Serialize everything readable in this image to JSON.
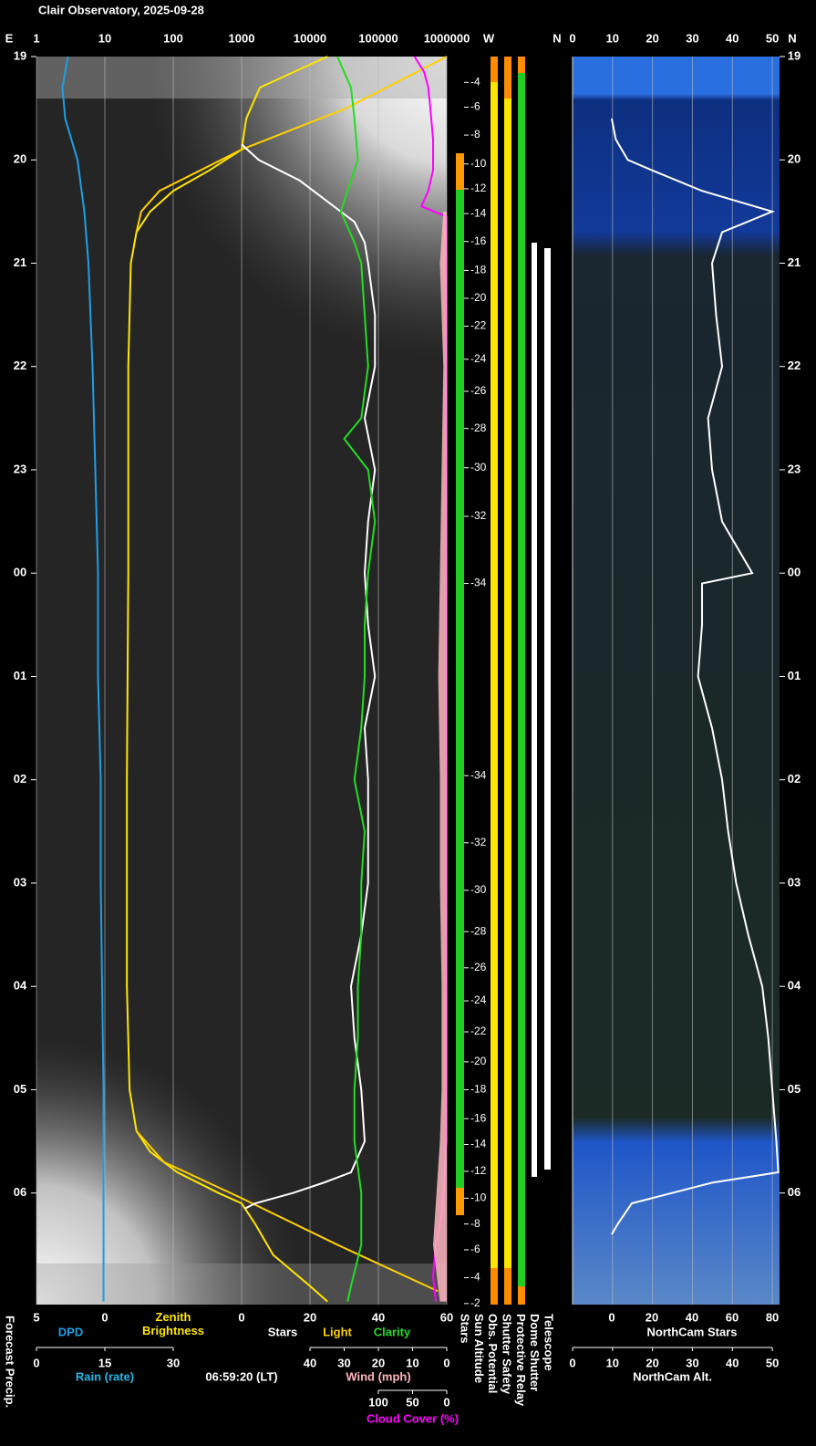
{
  "title": "Clair Observatory, 2025-09-28",
  "side_label": "Forecast Precip.",
  "footer_time": "06:59:20 (LT)",
  "mid_label": "N",
  "column_labels": [
    "Stars",
    "Sun Altitude",
    "Obs. Potential",
    "Shutter Safety",
    "Protective Relay",
    "Dome Shutter",
    "Telescope"
  ],
  "time_axis": {
    "ylim": [
      19,
      31.08
    ],
    "yticks": [
      19,
      20,
      21,
      22,
      23,
      {
        "value": 24,
        "label": "00"
      },
      {
        "value": 25,
        "label": "01"
      },
      {
        "value": 26,
        "label": "02"
      },
      {
        "value": 27,
        "label": "03"
      },
      {
        "value": 28,
        "label": "04"
      },
      {
        "value": 29,
        "label": "05"
      },
      {
        "value": 30,
        "label": "06"
      }
    ]
  },
  "left_panel": {
    "east_label": "E",
    "west_label": "W",
    "grid": true,
    "axes": {
      "log": {
        "lim": [
          1,
          1000000
        ],
        "ticks": [
          1,
          10,
          100,
          1000,
          10000,
          100000,
          1000000
        ],
        "log": true
      },
      "dpd": {
        "label": "DPD",
        "color": "#1e9fe6",
        "lim": [
          5,
          -25
        ],
        "ticks": [
          5,
          0
        ]
      },
      "slc": {
        "lim": [
          -60,
          60
        ],
        "ticks": [
          0,
          20,
          40,
          60
        ]
      },
      "rain": {
        "label": "Rain (rate)",
        "color": "#22b5e8",
        "lim": [
          0,
          90
        ],
        "ticks": [
          0,
          15,
          30
        ]
      },
      "wind": {
        "label": "Wind (mph)",
        "color": "#ffb6c1",
        "lim": [
          120,
          0
        ],
        "ticks": [
          40,
          30,
          20,
          10,
          0
        ]
      },
      "cloud": {
        "label": "Cloud Cover (%)",
        "color": "#ff00ff",
        "lim": [
          600,
          0
        ],
        "ticks": [
          100,
          50,
          0
        ]
      }
    },
    "series": [
      {
        "name": "Zenith Brightness",
        "axis": "log",
        "color": "#ffe600",
        "t": [
          19.0,
          19.3,
          19.6,
          19.9,
          20.1,
          20.3,
          20.5,
          20.7,
          21.0,
          22.0,
          24.0,
          26.0,
          28.0,
          29.0,
          29.4,
          29.6,
          29.8,
          30.0,
          30.1,
          30.3,
          30.6,
          30.9,
          31.05
        ],
        "values": [
          18000,
          1850,
          1170,
          1000,
          340,
          100,
          46,
          29,
          24,
          22,
          22,
          21,
          21,
          23,
          29,
          46,
          115,
          460,
          1000,
          1580,
          2900,
          10000,
          18000
        ]
      },
      {
        "name": "Light",
        "axis": "log",
        "color": "#ffd000",
        "t": [
          19.0,
          19.5,
          19.9,
          20.3,
          20.5,
          20.7,
          25.0,
          29.4,
          29.7,
          30.05,
          30.5,
          30.95
        ],
        "values": [
          1000000,
          34000,
          1000,
          63,
          34,
          29,
          null,
          29,
          73,
          1000,
          25000,
          740000
        ]
      },
      {
        "name": "Stars",
        "axis": "slc",
        "color": "#ffffff",
        "t": [
          19.85,
          20.0,
          20.2,
          20.4,
          20.6,
          20.8,
          21.0,
          21.5,
          22.0,
          22.5,
          23.0,
          23.5,
          24.0,
          24.5,
          25.0,
          25.5,
          26.0,
          26.5,
          27.0,
          27.5,
          28.0,
          28.5,
          29.0,
          29.5,
          29.8,
          29.9,
          30.0,
          30.1,
          30.15
        ],
        "values": [
          0,
          5,
          17,
          25,
          33,
          36,
          37,
          39,
          39,
          36,
          39,
          37,
          36,
          37,
          39,
          36,
          37,
          37,
          37,
          35,
          32,
          33,
          35,
          36,
          32,
          24,
          15,
          4,
          1
        ]
      },
      {
        "name": "Clarity",
        "axis": "slc",
        "color": "#22dd22",
        "t": [
          19.0,
          19.3,
          19.6,
          20.0,
          20.3,
          20.5,
          20.8,
          21.0,
          21.5,
          22.0,
          22.5,
          22.7,
          23.0,
          23.5,
          24.0,
          24.5,
          25.0,
          25.5,
          26.0,
          26.5,
          27.0,
          27.5,
          28.0,
          28.5,
          29.0,
          29.5,
          30.0,
          30.5,
          30.9,
          31.05
        ],
        "values": [
          28,
          32,
          33,
          34,
          31,
          29,
          33,
          35,
          36,
          37,
          35,
          30,
          37,
          39,
          37,
          36,
          36,
          35,
          33,
          36,
          35,
          35,
          34,
          34,
          33,
          33,
          35,
          35,
          32,
          31
        ]
      },
      {
        "axis": "dpd",
        "color": "#1e9fe6",
        "t": [
          19.0,
          19.3,
          19.6,
          20.0,
          20.5,
          21.0,
          22.0,
          23.0,
          24.0,
          25.0,
          26.0,
          27.0,
          28.0,
          29.0,
          30.0,
          31.05
        ],
        "values": [
          2.7,
          3.1,
          2.9,
          2,
          1.5,
          1.2,
          0.9,
          0.7,
          0.5,
          0.5,
          0.3,
          0.3,
          0.2,
          0.1,
          0.1,
          0.1
        ]
      },
      {
        "axis": "cloud",
        "color": "#ff00ff",
        "t": [
          19.0,
          19.15,
          19.3,
          19.5,
          19.8,
          20.1,
          20.3,
          20.45,
          20.55,
          21.0,
          25.0,
          29.5,
          30.2,
          30.5,
          30.8,
          31.05
        ],
        "values": [
          47,
          33,
          27,
          24,
          20,
          20,
          27,
          37,
          0,
          0,
          0,
          0,
          7,
          16,
          20,
          16
        ]
      },
      {
        "axis": "wind",
        "color": "#ffb6c1",
        "area": true,
        "t": [
          20.5,
          21,
          22,
          23,
          24,
          25,
          26,
          27,
          28,
          29,
          29.5,
          30,
          30.5,
          31.05
        ],
        "values": [
          1,
          2,
          1,
          1.5,
          2,
          2.5,
          2,
          2,
          1.5,
          1.5,
          2,
          3,
          4,
          2
        ]
      }
    ]
  },
  "sun_altitude": [
    {
      "time": 19.25,
      "altitude": -4
    },
    {
      "time": 19.49,
      "altitude": -6
    },
    {
      "time": 19.76,
      "altitude": -8
    },
    {
      "time": 20.04,
      "altitude": -10
    },
    {
      "time": 20.28,
      "altitude": -12
    },
    {
      "time": 20.52,
      "altitude": -14
    },
    {
      "time": 20.79,
      "altitude": -16
    },
    {
      "time": 21.07,
      "altitude": -18
    },
    {
      "time": 21.34,
      "altitude": -20
    },
    {
      "time": 21.61,
      "altitude": -22
    },
    {
      "time": 21.93,
      "altitude": -24
    },
    {
      "time": 22.24,
      "altitude": -26
    },
    {
      "time": 22.6,
      "altitude": -28
    },
    {
      "time": 22.98,
      "altitude": -30
    },
    {
      "time": 23.45,
      "altitude": -32
    },
    {
      "time": 24.1,
      "altitude": -34
    },
    {
      "time": 25.96,
      "altitude": -34
    },
    {
      "time": 26.61,
      "altitude": -32
    },
    {
      "time": 27.07,
      "altitude": -30
    },
    {
      "time": 27.47,
      "altitude": -28
    },
    {
      "time": 27.82,
      "altitude": -26
    },
    {
      "time": 28.14,
      "altitude": -24
    },
    {
      "time": 28.44,
      "altitude": -22
    },
    {
      "time": 28.73,
      "altitude": -20
    },
    {
      "time": 29.0,
      "altitude": -18
    },
    {
      "time": 29.28,
      "altitude": -16
    },
    {
      "time": 29.53,
      "altitude": -14
    },
    {
      "time": 29.79,
      "altitude": -12
    },
    {
      "time": 30.05,
      "altitude": -10
    },
    {
      "time": 30.3,
      "altitude": -8
    },
    {
      "time": 30.55,
      "altitude": -6
    },
    {
      "time": 30.82,
      "altitude": -4
    },
    {
      "time": 31.07,
      "altitude": -2
    }
  ],
  "right_panel": {
    "north_label": "N",
    "grid": true,
    "axes": {
      "stars": {
        "label": "NorthCam Stars",
        "lim": [
          -19.5,
          83.6
        ],
        "ticks": [
          0,
          20,
          40,
          60,
          80
        ]
      },
      "alt": {
        "label": "NorthCam Alt.",
        "lim": [
          0,
          51.8
        ],
        "ticks": [
          0,
          10,
          20,
          30,
          40,
          50
        ]
      }
    },
    "series": [
      {
        "axis": "stars",
        "color": "#ffffff",
        "t": [
          19.6,
          19.8,
          20.0,
          20.1,
          20.3,
          20.5,
          20.7,
          21.0,
          21.5,
          22.0,
          22.5,
          23.0,
          23.5,
          24.0,
          24.1,
          24.5,
          25.0,
          25.5,
          26.0,
          26.5,
          27.0,
          27.5,
          28.0,
          28.5,
          29.0,
          29.5,
          29.8,
          29.9,
          30.1,
          30.3,
          30.4
        ],
        "values": [
          0,
          2,
          8,
          20,
          45,
          80,
          55,
          50,
          52,
          55,
          48,
          50,
          55,
          70,
          45,
          45,
          43,
          50,
          55,
          58,
          62,
          68,
          75,
          78,
          80,
          82,
          83,
          50,
          10,
          3,
          0
        ]
      }
    ]
  }
}
